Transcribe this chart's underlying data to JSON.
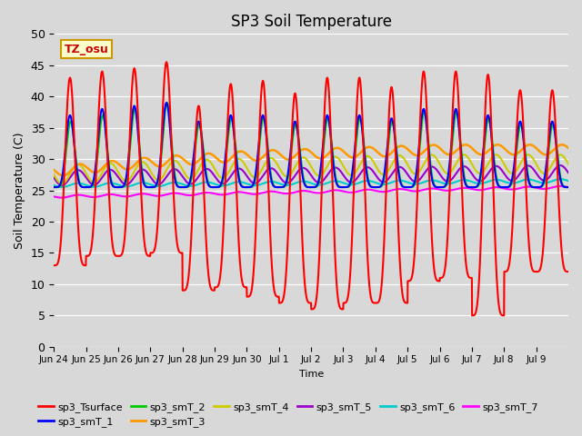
{
  "title": "SP3 Soil Temperature",
  "ylabel": "Soil Temperature (C)",
  "xlabel": "Time",
  "ylim": [
    0,
    50
  ],
  "yticks": [
    0,
    5,
    10,
    15,
    20,
    25,
    30,
    35,
    40,
    45,
    50
  ],
  "background_color": "#d8d8d8",
  "tz_label": "TZ_osu",
  "legend_entries": [
    "sp3_Tsurface",
    "sp3_smT_1",
    "sp3_smT_2",
    "sp3_smT_3",
    "sp3_smT_4",
    "sp3_smT_5",
    "sp3_smT_6",
    "sp3_smT_7"
  ],
  "line_colors": [
    "#ff0000",
    "#0000ff",
    "#00cc00",
    "#ff9900",
    "#cccc00",
    "#9900cc",
    "#00cccc",
    "#ff00ff"
  ],
  "xtick_labels": [
    "Jun 24",
    "Jun 25",
    "Jun 26",
    "Jun 27",
    "Jun 28",
    "Jun 29",
    "Jun 30",
    "Jul 1",
    "Jul 2",
    "Jul 3",
    "Jul 4",
    "Jul 5",
    "Jul 6",
    "Jul 7",
    "Jul 8",
    "Jul 9"
  ],
  "n_days": 16,
  "ppd": 144
}
